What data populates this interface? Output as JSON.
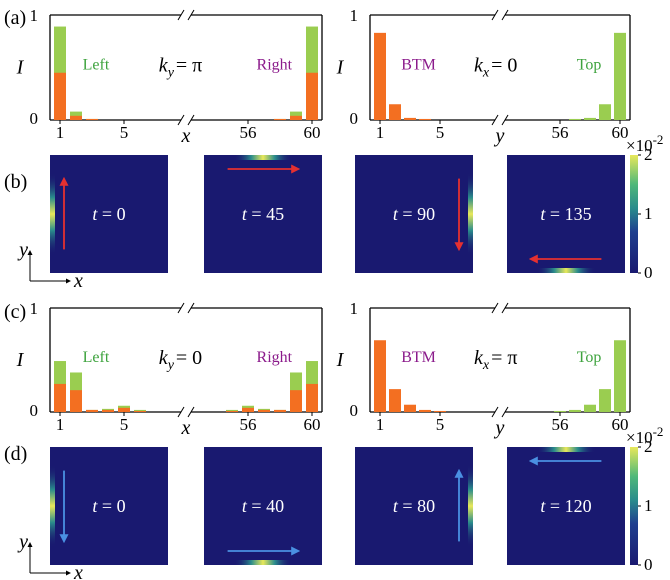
{
  "panels": {
    "a": "(a)",
    "b": "(b)",
    "c": "(c)",
    "d": "(d)"
  },
  "colors": {
    "green": "#9acd50",
    "orange": "#f36f21",
    "left_label": "#3ea33e",
    "right_label": "#8b1a8b",
    "navy": "#191970",
    "red_arrow": "#e53030",
    "blue_arrow": "#4a90e2"
  },
  "chart_data": [
    {
      "id": "a-left",
      "type": "bar",
      "ylabel": "I",
      "xlabel": "x",
      "ylim": [
        0,
        1
      ],
      "yticks": [
        "0",
        "1"
      ],
      "xticks": [
        "1",
        "5",
        "56",
        "60"
      ],
      "labels": {
        "left": "Left",
        "right": "Right",
        "k": "k",
        "k_sub": "y",
        "k_val": "= π"
      },
      "sites_left": [
        1,
        2,
        3,
        4,
        5,
        6
      ],
      "sites_right": [
        55,
        56,
        57,
        58,
        59,
        60
      ],
      "green_left": [
        0.89,
        0.08,
        0.01,
        0.0,
        0.0,
        0.0
      ],
      "orange_left": [
        0.45,
        0.04,
        0.01,
        0.0,
        0.0,
        0.0
      ],
      "green_right": [
        0.0,
        0.0,
        0.0,
        0.01,
        0.08,
        0.89
      ],
      "orange_right": [
        0.0,
        0.0,
        0.0,
        0.01,
        0.04,
        0.45
      ]
    },
    {
      "id": "a-right",
      "type": "bar",
      "ylabel": "I",
      "xlabel": "y",
      "ylim": [
        0,
        1
      ],
      "yticks": [
        "0",
        "1"
      ],
      "xticks": [
        "1",
        "5",
        "56",
        "60"
      ],
      "labels": {
        "left": "BTM",
        "right": "Top",
        "k": "k",
        "k_sub": "x",
        "k_val": "= 0"
      },
      "sites_left": [
        1,
        2,
        3,
        4,
        5,
        6
      ],
      "sites_right": [
        55,
        56,
        57,
        58,
        59,
        60
      ],
      "green_left": [
        0.0,
        0.0,
        0.0,
        0.0,
        0.0,
        0.0
      ],
      "orange_left": [
        0.83,
        0.15,
        0.02,
        0.01,
        0.0,
        0.0
      ],
      "green_right": [
        0.0,
        0.0,
        0.01,
        0.02,
        0.15,
        0.83
      ],
      "orange_right": [
        0.0,
        0.0,
        0.0,
        0.0,
        0.0,
        0.0
      ]
    },
    {
      "id": "c-left",
      "type": "bar",
      "ylabel": "I",
      "xlabel": "x",
      "ylim": [
        0,
        1
      ],
      "yticks": [
        "0",
        "1"
      ],
      "xticks": [
        "1",
        "5",
        "56",
        "60"
      ],
      "labels": {
        "left": "Left",
        "right": "Right",
        "k": "k",
        "k_sub": "y",
        "k_val": "= 0"
      },
      "sites_left": [
        1,
        2,
        3,
        4,
        5,
        6
      ],
      "sites_right": [
        55,
        56,
        57,
        58,
        59,
        60
      ],
      "green_left": [
        0.49,
        0.38,
        0.02,
        0.03,
        0.06,
        0.02
      ],
      "orange_left": [
        0.27,
        0.21,
        0.02,
        0.02,
        0.04,
        0.01
      ],
      "green_right": [
        0.02,
        0.06,
        0.03,
        0.02,
        0.38,
        0.49
      ],
      "orange_right": [
        0.01,
        0.04,
        0.02,
        0.02,
        0.21,
        0.27
      ]
    },
    {
      "id": "c-right",
      "type": "bar",
      "ylabel": "I",
      "xlabel": "y",
      "ylim": [
        0,
        1
      ],
      "yticks": [
        "0",
        "1"
      ],
      "xticks": [
        "1",
        "5",
        "56",
        "60"
      ],
      "labels": {
        "left": "BTM",
        "right": "Top",
        "k": "k",
        "k_sub": "x",
        "k_val": "= π"
      },
      "sites_left": [
        1,
        2,
        3,
        4,
        5,
        6
      ],
      "sites_right": [
        55,
        56,
        57,
        58,
        59,
        60
      ],
      "green_left": [
        0.0,
        0.0,
        0.0,
        0.0,
        0.0,
        0.0
      ],
      "orange_left": [
        0.69,
        0.22,
        0.07,
        0.02,
        0.01,
        0.0
      ],
      "green_right": [
        0.0,
        0.01,
        0.02,
        0.07,
        0.22,
        0.69
      ],
      "orange_right": [
        0.0,
        0.0,
        0.0,
        0.0,
        0.0,
        0.0
      ]
    },
    {
      "id": "b-heatmaps",
      "type": "heatmap",
      "times": [
        "t = 0",
        "t = 45",
        "t = 90",
        "t = 135"
      ],
      "edges": [
        "left",
        "top",
        "right",
        "bottom"
      ],
      "arrows": [
        "up",
        "right",
        "down",
        "left"
      ],
      "colorbar": {
        "ticks": [
          "0",
          "1",
          "2"
        ],
        "scale": "×10",
        "exponent": "-2",
        "range": [
          0,
          2
        ]
      }
    },
    {
      "id": "d-heatmaps",
      "type": "heatmap",
      "times": [
        "t = 0",
        "t = 40",
        "t = 80",
        "t = 120"
      ],
      "edges": [
        "left",
        "bottom",
        "right",
        "top"
      ],
      "arrows": [
        "down",
        "right",
        "up",
        "left"
      ],
      "colorbar": {
        "ticks": [
          "0",
          "1",
          "2"
        ],
        "scale": "×10",
        "exponent": "-2",
        "range": [
          0,
          2
        ]
      }
    }
  ],
  "axes_small": {
    "x": "x",
    "y": "y"
  }
}
